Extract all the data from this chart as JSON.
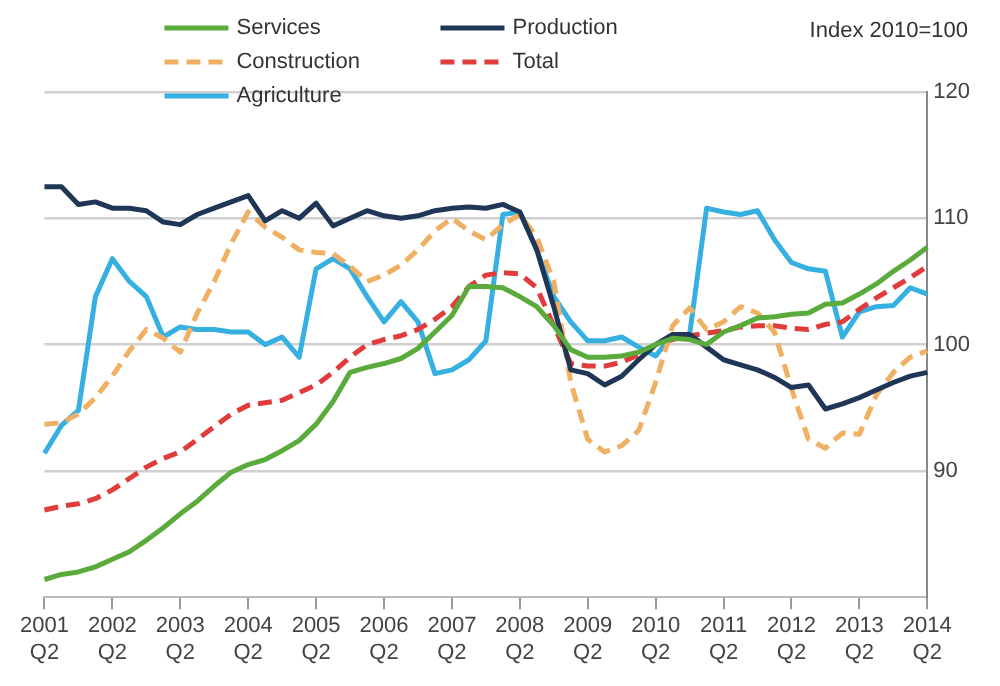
{
  "chart_data": {
    "type": "line",
    "ylabel": "Index 2010=100",
    "categories": [
      "2001 Q2",
      null,
      null,
      null,
      "2002 Q2",
      null,
      null,
      null,
      "2003 Q2",
      null,
      null,
      null,
      "2004 Q2",
      null,
      null,
      null,
      "2005 Q2",
      null,
      null,
      null,
      "2006 Q2",
      null,
      null,
      null,
      "2007 Q2",
      null,
      null,
      null,
      "2008 Q2",
      null,
      null,
      null,
      "2009 Q2",
      null,
      null,
      null,
      "2010 Q2",
      null,
      null,
      null,
      "2011 Q2",
      null,
      null,
      null,
      "2012 Q2",
      null,
      null,
      null,
      "2013 Q2",
      null,
      null,
      null,
      "2014 Q2"
    ],
    "series": [
      {
        "name": "Services",
        "color": "#5aab3c",
        "line_style": "solid",
        "values": [
          81.4,
          81.8,
          82.0,
          82.4,
          83.0,
          83.6,
          84.5,
          85.5,
          86.6,
          87.6,
          88.8,
          89.9,
          90.5,
          90.9,
          91.6,
          92.4,
          93.7,
          95.5,
          97.8,
          98.2,
          98.5,
          98.9,
          99.7,
          101.0,
          102.3,
          104.6,
          104.6,
          104.5,
          103.8,
          103.0,
          101.5,
          99.6,
          99.0,
          99.0,
          99.1,
          99.4,
          100.0,
          100.5,
          100.4,
          100.0,
          101.0,
          101.5,
          102.1,
          102.2,
          102.4,
          102.5,
          103.2,
          103.3,
          104.0,
          104.8,
          105.8,
          106.7,
          107.7
        ]
      },
      {
        "name": "Production",
        "color": "#1f3657",
        "line_style": "solid",
        "values": [
          112.5,
          112.5,
          111.1,
          111.3,
          110.8,
          110.8,
          110.6,
          109.7,
          109.5,
          110.3,
          110.8,
          111.3,
          111.8,
          109.8,
          110.6,
          110.0,
          111.2,
          109.4,
          110.0,
          110.6,
          110.2,
          110.0,
          110.2,
          110.6,
          110.8,
          110.9,
          110.8,
          111.1,
          110.5,
          107.5,
          103.0,
          98.0,
          97.7,
          96.8,
          97.5,
          98.8,
          100.0,
          100.8,
          100.8,
          99.8,
          98.8,
          98.4,
          98.0,
          97.4,
          96.6,
          96.8,
          94.9,
          95.3,
          95.8,
          96.4,
          97.0,
          97.5,
          97.8
        ]
      },
      {
        "name": "Construction",
        "color": "#f0b064",
        "line_style": "dashed",
        "values": [
          93.7,
          93.8,
          94.5,
          95.8,
          97.5,
          99.5,
          101.2,
          100.5,
          99.4,
          102.5,
          105.0,
          108.0,
          110.5,
          109.3,
          108.5,
          107.5,
          107.3,
          107.2,
          106.2,
          105.0,
          105.5,
          106.3,
          107.5,
          109.0,
          110.0,
          109.0,
          108.3,
          109.5,
          110.3,
          108.5,
          105.0,
          97.0,
          92.5,
          91.5,
          92.0,
          93.2,
          97.0,
          101.5,
          102.9,
          101.2,
          101.8,
          103.0,
          102.5,
          101.0,
          96.5,
          92.5,
          91.8,
          93.0,
          92.9,
          96.0,
          97.8,
          99.0,
          99.5
        ]
      },
      {
        "name": "Total",
        "color": "#e03c3c",
        "line_style": "dashed",
        "values": [
          86.9,
          87.2,
          87.4,
          87.8,
          88.5,
          89.4,
          90.3,
          91.0,
          91.5,
          92.5,
          93.5,
          94.5,
          95.2,
          95.4,
          95.6,
          96.2,
          96.8,
          97.8,
          99.0,
          100.0,
          100.4,
          100.7,
          101.2,
          102.0,
          103.0,
          104.6,
          105.5,
          105.7,
          105.6,
          104.5,
          101.5,
          98.5,
          98.3,
          98.3,
          98.6,
          99.2,
          100.0,
          100.4,
          100.7,
          100.9,
          101.1,
          101.4,
          101.5,
          101.5,
          101.3,
          101.2,
          101.6,
          101.8,
          102.8,
          103.7,
          104.5,
          105.3,
          106.2
        ]
      },
      {
        "name": "Agriculture",
        "color": "#35b0e0",
        "line_style": "solid",
        "values": [
          91.4,
          93.6,
          94.8,
          103.8,
          106.8,
          105.0,
          103.8,
          100.6,
          101.4,
          101.2,
          101.2,
          101.0,
          101.0,
          100.0,
          100.6,
          99.0,
          106.0,
          106.8,
          106.0,
          103.8,
          101.8,
          103.4,
          101.8,
          97.7,
          98.0,
          98.8,
          100.3,
          110.3,
          110.5,
          107.5,
          103.8,
          101.8,
          100.3,
          100.3,
          100.6,
          99.8,
          99.1,
          100.8,
          100.8,
          110.8,
          110.5,
          110.3,
          110.6,
          108.3,
          106.5,
          106.0,
          105.8,
          100.6,
          102.6,
          103.0,
          103.1,
          104.5,
          104.0
        ]
      }
    ],
    "ylim": [
      80,
      120
    ],
    "yticks": [
      90,
      100,
      110,
      120
    ],
    "grid": "y",
    "legend": "top left",
    "marker": "none"
  }
}
